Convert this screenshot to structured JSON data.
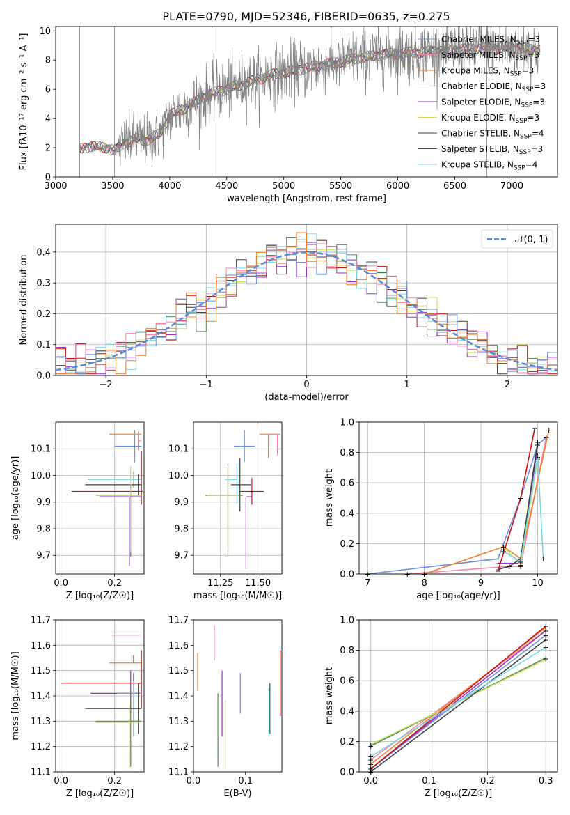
{
  "figure_title": "PLATE=0790, MJD=52346, FIBERID=0635, z=0.275",
  "colors": {
    "Chabrier MILES": "#6f8fe0",
    "Salpeter MILES": "#f08aa8",
    "Kroupa MILES": "#ee7f2d",
    "Chabrier ELODIE": "#5a8a5a",
    "Salpeter ELODIE": "#9b30c9",
    "Kroupa ELODIE": "#c8e05a",
    "Chabrier STELIB": "#404040",
    "Salpeter STELIB": "#c81414",
    "Kroupa STELIB": "#78d8e6",
    "data_spectrum": "#808080",
    "normal_curve": "#5b8bd8"
  },
  "chart_data": [
    {
      "id": "spectrum",
      "type": "line",
      "title": "PLATE=0790, MJD=52346, FIBERID=0635, z=0.275",
      "xlabel": "wavelength [Angstrom, rest frame]",
      "ylabel": "Flux [fλ10⁻¹⁷ erg cm⁻² s⁻¹ A⁻¹]",
      "xlim": [
        3000,
        7400
      ],
      "ylim": [
        0,
        10.3
      ],
      "xticks": [
        3000,
        3500,
        4000,
        4500,
        5000,
        5500,
        6000,
        6500,
        7000
      ],
      "yticks": [
        0,
        2,
        4,
        6,
        8,
        10
      ],
      "legend_position": "top-right",
      "legend": [
        "Chabrier MILES, N_SSP=3",
        "Salpeter MILES, N_SSP=3",
        "Kroupa MILES, N_SSP=3",
        "Chabrier ELODIE, N_SSP=3",
        "Salpeter ELODIE, N_SSP=3",
        "Kroupa ELODIE, N_SSP=3",
        "Chabrier STELIB, N_SSP=4",
        "Salpeter STELIB, N_SSP=3",
        "Kroupa STELIB, N_SSP=4"
      ],
      "continuum_anchors": {
        "x": [
          3210,
          3300,
          3450,
          3520,
          3600,
          3700,
          3800,
          3900,
          3950,
          4000,
          4100,
          4200,
          4300,
          4400,
          4500,
          4700,
          4900,
          5100,
          5300,
          5500,
          5700,
          5900,
          6100,
          6300,
          6500,
          6700,
          6900,
          7100,
          7250
        ],
        "y": [
          1.9,
          2.1,
          2.0,
          1.8,
          2.3,
          2.6,
          2.5,
          2.9,
          3.4,
          4.2,
          4.6,
          5.0,
          5.5,
          5.8,
          6.0,
          6.5,
          7.0,
          7.3,
          7.6,
          7.9,
          8.2,
          8.4,
          8.5,
          8.6,
          8.7,
          8.8,
          8.85,
          8.8,
          8.7
        ]
      },
      "spectrum_x_range": [
        3210,
        7250
      ]
    },
    {
      "id": "residuals",
      "type": "line",
      "xlabel": "(data-model)/error",
      "ylabel": "Normed distribution",
      "xlim": [
        -2.5,
        2.5
      ],
      "ylim": [
        0,
        0.49
      ],
      "xticks": [
        -2,
        -1,
        0,
        1,
        2
      ],
      "yticks": [
        0.0,
        0.1,
        0.2,
        0.3,
        0.4
      ],
      "legend_position": "top-right",
      "legend": [
        "𝒩(0, 1)"
      ],
      "grid": true,
      "bin_width": 0.1,
      "series_note": "histograms of residuals for each model"
    },
    {
      "id": "age_vs_Z",
      "type": "scatter",
      "xlabel": "Z [log₁₀(Z/Z☉)]",
      "ylabel": "age  [log₁₀(age/yr)]",
      "xlim": [
        -0.02,
        0.31
      ],
      "ylim": [
        9.63,
        10.2
      ],
      "xticks": [
        0.0,
        0.2
      ],
      "yticks": [
        9.7,
        9.8,
        9.9,
        10.0,
        10.1
      ],
      "grid": true,
      "points": [
        {
          "model": "Chabrier MILES",
          "x": 0.275,
          "y": 10.11,
          "xerr": [
            0.075,
            0.025
          ],
          "yerr": [
            0.06,
            0.06
          ]
        },
        {
          "model": "Kroupa MILES",
          "x": 0.29,
          "y": 10.155,
          "xerr": [
            0.11,
            0.01
          ],
          "yerr": [
            0.06,
            0.01
          ]
        },
        {
          "model": "Salpeter MILES",
          "x": 0.29,
          "y": 10.13,
          "xerr": [
            0.0,
            0.01
          ],
          "yerr": [
            0.0,
            0.03
          ]
        },
        {
          "model": "Kroupa STELIB",
          "x": 0.27,
          "y": 9.985,
          "xerr": [
            0.17,
            0.03
          ],
          "yerr": [
            0.03,
            0.03
          ]
        },
        {
          "model": "Chabrier STELIB",
          "x": 0.29,
          "y": 9.965,
          "xerr": [
            0.2,
            0.01
          ],
          "yerr": [
            0.04,
            0.04
          ]
        },
        {
          "model": "Salpeter STELIB",
          "x": 0.3,
          "y": 9.94,
          "xerr": [
            0.26,
            0.005
          ],
          "yerr": [
            0.05,
            0.15
          ]
        },
        {
          "model": "Chabrier ELODIE",
          "x": 0.26,
          "y": 9.925,
          "xerr": [
            0.13,
            0.04
          ],
          "yerr": [
            0.23,
            0.04
          ]
        },
        {
          "model": "Kroupa ELODIE",
          "x": 0.26,
          "y": 9.925,
          "xerr": [
            0.13,
            0.04
          ],
          "yerr": [
            0.21,
            0.11
          ]
        },
        {
          "model": "Salpeter ELODIE",
          "x": 0.255,
          "y": 9.92,
          "xerr": [
            0.11,
            0.045
          ],
          "yerr": [
            0.26,
            0.0
          ]
        }
      ]
    },
    {
      "id": "age_vs_mass",
      "type": "scatter",
      "xlabel": "mass [log₁₀(M/M☉)]",
      "xlim": [
        11.07,
        11.66
      ],
      "ylim": [
        9.63,
        10.2
      ],
      "xticks": [
        11.25,
        11.5
      ],
      "yticks": [
        9.7,
        9.8,
        9.9,
        10.0,
        10.1
      ],
      "grid": true,
      "points": [
        {
          "model": "Chabrier MILES",
          "x": 11.41,
          "y": 10.11,
          "xerr": [
            0.07,
            0.07
          ],
          "yerr": [
            0.06,
            0.06
          ]
        },
        {
          "model": "Kroupa MILES",
          "x": 11.57,
          "y": 10.155,
          "xerr": [
            0.06,
            0.06
          ],
          "yerr": [
            0.09,
            0.0
          ]
        },
        {
          "model": "Salpeter MILES",
          "x": 11.63,
          "y": 10.155,
          "xerr": [
            0.02,
            0.02
          ],
          "yerr": [
            0.08,
            0.0
          ]
        },
        {
          "model": "Kroupa STELIB",
          "x": 11.36,
          "y": 9.985,
          "xerr": [
            0.08,
            0.0
          ],
          "yerr": [
            0.09,
            0.06
          ]
        },
        {
          "model": "Chabrier STELIB",
          "x": 11.38,
          "y": 9.965,
          "xerr": [
            0.06,
            0.07
          ],
          "yerr": [
            0.1,
            0.1
          ]
        },
        {
          "model": "Salpeter STELIB",
          "x": 11.46,
          "y": 9.94,
          "xerr": [
            0.08,
            0.08
          ],
          "yerr": [
            0.05,
            0.05
          ]
        },
        {
          "model": "Chabrier ELODIE",
          "x": 11.3,
          "y": 9.925,
          "xerr": [
            0.15,
            0.1
          ],
          "yerr": [
            0.23,
            0.12
          ]
        },
        {
          "model": "Kroupa ELODIE",
          "x": 11.3,
          "y": 9.925,
          "xerr": [
            0.14,
            0.07
          ],
          "yerr": [
            0.21,
            0.11
          ]
        },
        {
          "model": "Salpeter ELODIE",
          "x": 11.42,
          "y": 9.92,
          "xerr": [
            0.0,
            0.04
          ],
          "yerr": [
            0.27,
            0.0
          ]
        }
      ]
    },
    {
      "id": "massweight_vs_age",
      "type": "line",
      "xlabel": "age  [log₁₀(age/yr)]",
      "ylabel": "mass weight",
      "xlim": [
        6.85,
        10.35
      ],
      "ylim": [
        0,
        1.0
      ],
      "xticks": [
        7,
        8,
        9,
        10
      ],
      "yticks": [
        0.0,
        0.2,
        0.4,
        0.6,
        0.8,
        1.0
      ],
      "grid": true,
      "series": [
        {
          "name": "Chabrier MILES",
          "x": [
            7.0,
            9.3,
            9.7,
            10.0,
            10.15
          ],
          "y": [
            0.0,
            0.1,
            0.5,
            0.85,
            0.9
          ]
        },
        {
          "name": "Salpeter MILES",
          "x": [
            7.7,
            9.5,
            9.7,
            10.15
          ],
          "y": [
            0.0,
            0.05,
            0.05,
            0.9
          ]
        },
        {
          "name": "Kroupa MILES",
          "x": [
            8.0,
            9.4,
            9.7,
            10.2
          ],
          "y": [
            0.0,
            0.18,
            0.1,
            0.95
          ]
        },
        {
          "name": "Chabrier ELODIE",
          "x": [
            9.4,
            9.7,
            10.0
          ],
          "y": [
            0.15,
            0.08,
            0.77
          ]
        },
        {
          "name": "Salpeter ELODIE",
          "x": [
            9.3,
            9.7,
            10.0
          ],
          "y": [
            0.07,
            0.07,
            0.85
          ]
        },
        {
          "name": "Kroupa ELODIE",
          "x": [
            9.4,
            9.7,
            10.0
          ],
          "y": [
            0.18,
            0.06,
            0.76
          ]
        },
        {
          "name": "Chabrier STELIB",
          "x": [
            9.3,
            9.5,
            9.7,
            10.0
          ],
          "y": [
            0.03,
            0.05,
            0.1,
            0.87
          ]
        },
        {
          "name": "Salpeter STELIB",
          "x": [
            9.3,
            9.7,
            9.95
          ],
          "y": [
            0.02,
            0.5,
            0.96
          ]
        },
        {
          "name": "Kroupa STELIB",
          "x": [
            9.4,
            9.7,
            10.0,
            10.1
          ],
          "y": [
            0.15,
            0.08,
            0.78,
            0.1
          ]
        }
      ]
    },
    {
      "id": "mass_vs_Z",
      "type": "scatter",
      "xlabel": "Z [log₁₀(Z/Z☉)]",
      "ylabel": "mass [log₁₀(M/M☉)]",
      "xlim": [
        -0.02,
        0.31
      ],
      "ylim": [
        11.1,
        11.7
      ],
      "xticks": [
        0.0,
        0.2
      ],
      "yticks": [
        11.1,
        11.2,
        11.3,
        11.4,
        11.5,
        11.6,
        11.7
      ],
      "grid": true,
      "points": [
        {
          "model": "Salpeter MILES",
          "x": 0.245,
          "y": 11.64,
          "xerr": [
            0.055,
            0.05
          ],
          "yerr": [
            0.0,
            0.0
          ]
        },
        {
          "model": "Kroupa MILES",
          "x": 0.27,
          "y": 11.53,
          "xerr": [
            0.09,
            0.03
          ],
          "yerr": [
            0.0,
            0.03
          ]
        },
        {
          "model": "Salpeter STELIB",
          "x": 0.3,
          "y": 11.45,
          "xerr": [
            0.3,
            0.0
          ],
          "yerr": [
            0.1,
            0.13
          ]
        },
        {
          "model": "Salpeter ELODIE",
          "x": 0.26,
          "y": 11.41,
          "xerr": [
            0.15,
            0.04
          ],
          "yerr": [
            0.08,
            0.09
          ]
        },
        {
          "model": "Chabrier MILES",
          "x": 0.27,
          "y": 11.41,
          "xerr": [
            0.06,
            0.03
          ],
          "yerr": [
            0.08,
            0.08
          ]
        },
        {
          "model": "Kroupa STELIB",
          "x": 0.27,
          "y": 11.35,
          "xerr": [
            0.17,
            0.03
          ],
          "yerr": [
            0.11,
            0.11
          ]
        },
        {
          "model": "Chabrier STELIB",
          "x": 0.29,
          "y": 11.35,
          "xerr": [
            0.2,
            0.01
          ],
          "yerr": [
            0.1,
            0.1
          ]
        },
        {
          "model": "Chabrier ELODIE",
          "x": 0.26,
          "y": 11.3,
          "xerr": [
            0.13,
            0.04
          ],
          "yerr": [
            0.18,
            0.12
          ]
        },
        {
          "model": "Kroupa ELODIE",
          "x": 0.255,
          "y": 11.295,
          "xerr": [
            0.125,
            0.045
          ],
          "yerr": [
            0.18,
            0.07
          ]
        }
      ]
    },
    {
      "id": "mass_vs_EBV",
      "type": "scatter",
      "xlabel": "E(B-V)",
      "xlim": [
        0.0,
        0.17
      ],
      "ylim": [
        11.1,
        11.7
      ],
      "xticks": [
        0.0,
        0.1
      ],
      "yticks": [
        11.1,
        11.2,
        11.3,
        11.4,
        11.5,
        11.6,
        11.7
      ],
      "grid": false,
      "points": [
        {
          "model": "Salpeter MILES",
          "x": 0.04,
          "y": 11.61,
          "yerr": [
            0.07,
            0.07
          ]
        },
        {
          "model": "Kroupa MILES",
          "x": 0.008,
          "y": 11.5,
          "yerr": [
            0.08,
            0.07
          ]
        },
        {
          "model": "Salpeter ELODIE",
          "x": 0.055,
          "y": 11.37,
          "yerr": [
            0.13,
            0.13
          ]
        },
        {
          "model": "Chabrier MILES",
          "x": 0.09,
          "y": 11.41,
          "yerr": [
            0.08,
            0.08
          ]
        },
        {
          "model": "Kroupa STELIB",
          "x": 0.145,
          "y": 11.33,
          "yerr": [
            0.09,
            0.1
          ]
        },
        {
          "model": "Chabrier STELIB",
          "x": 0.147,
          "y": 11.35,
          "yerr": [
            0.1,
            0.1
          ]
        },
        {
          "model": "Salpeter STELIB",
          "x": 0.167,
          "y": 11.45,
          "yerr": [
            0.13,
            0.13
          ]
        },
        {
          "model": "Chabrier ELODIE",
          "x": 0.047,
          "y": 11.27,
          "yerr": [
            0.15,
            0.14
          ]
        },
        {
          "model": "Kroupa ELODIE",
          "x": 0.061,
          "y": 11.26,
          "yerr": [
            0.15,
            0.12
          ]
        }
      ]
    },
    {
      "id": "massweight_vs_Z",
      "type": "line",
      "xlabel": "Z [log₁₀(Z/Z☉)]",
      "ylabel": "mass weight",
      "xlim": [
        -0.02,
        0.32
      ],
      "ylim": [
        0,
        1.0
      ],
      "xticks": [
        0.0,
        0.1,
        0.2,
        0.3
      ],
      "yticks": [
        0.0,
        0.2,
        0.4,
        0.6,
        0.8,
        1.0
      ],
      "grid": true,
      "series": [
        {
          "name": "Chabrier MILES",
          "x": [
            0.0,
            0.3
          ],
          "y": [
            0.02,
            0.9
          ]
        },
        {
          "name": "Salpeter MILES",
          "x": [
            0.0,
            0.3
          ],
          "y": [
            0.08,
            0.93
          ]
        },
        {
          "name": "Kroupa MILES",
          "x": [
            0.0,
            0.3
          ],
          "y": [
            0.05,
            0.95
          ]
        },
        {
          "name": "Chabrier ELODIE",
          "x": [
            0.0,
            0.3
          ],
          "y": [
            0.17,
            0.75
          ]
        },
        {
          "name": "Salpeter ELODIE",
          "x": [
            0.0,
            0.3
          ],
          "y": [
            0.02,
            0.93
          ]
        },
        {
          "name": "Kroupa ELODIE",
          "x": [
            0.0,
            0.3
          ],
          "y": [
            0.18,
            0.74
          ]
        },
        {
          "name": "Chabrier STELIB",
          "x": [
            0.0,
            0.3
          ],
          "y": [
            0.0,
            0.87
          ]
        },
        {
          "name": "Salpeter STELIB",
          "x": [
            0.0,
            0.3
          ],
          "y": [
            0.02,
            0.96
          ]
        },
        {
          "name": "Kroupa STELIB",
          "x": [
            0.0,
            0.3
          ],
          "y": [
            0.1,
            0.82
          ]
        }
      ]
    }
  ]
}
